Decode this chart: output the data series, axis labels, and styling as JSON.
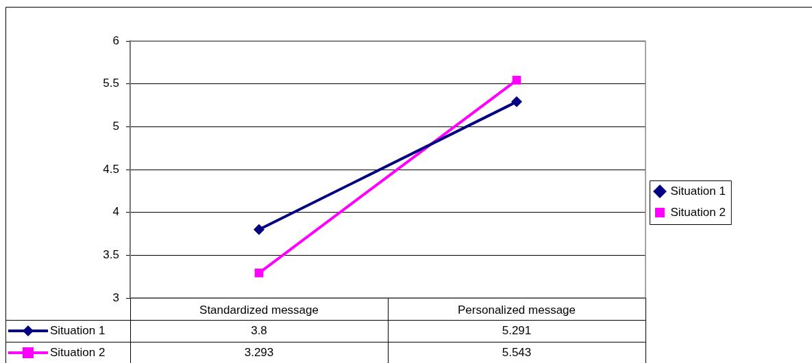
{
  "chart_data": {
    "type": "line",
    "categories": [
      "Standardized message",
      "Personalized message"
    ],
    "series": [
      {
        "name": "Situation 1",
        "color": "#000080",
        "values": [
          3.8,
          5.291
        ],
        "marker": "diamond"
      },
      {
        "name": "Situation 2",
        "color": "#ff00ff",
        "values": [
          3.293,
          5.543
        ],
        "marker": "square"
      }
    ],
    "ylim": [
      3,
      6
    ],
    "yticks": [
      3,
      3.5,
      4,
      4.5,
      5,
      5.5,
      6
    ],
    "grid": "y",
    "legend": "right",
    "data_labels": true,
    "line_style": "solid"
  }
}
